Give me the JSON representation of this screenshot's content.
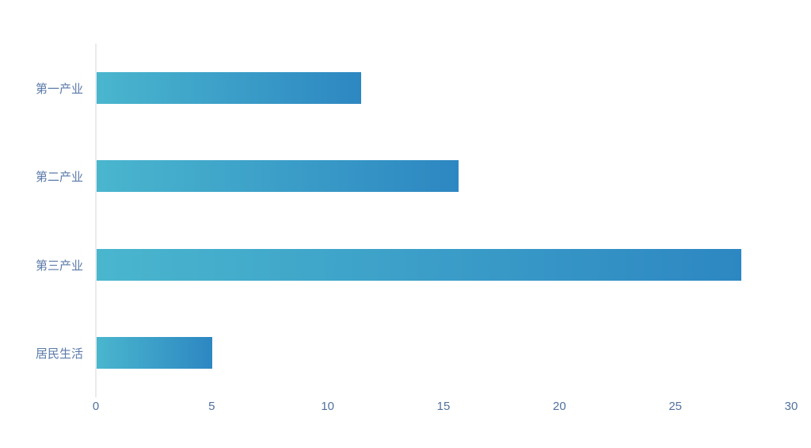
{
  "chart_data": {
    "type": "bar",
    "orientation": "horizontal",
    "title": "",
    "xlabel": "",
    "ylabel": "",
    "categories": [
      "第一产业",
      "第二产业",
      "第三产业",
      "居民生活"
    ],
    "values": [
      11.4,
      15.6,
      27.8,
      5
    ],
    "xlim": [
      0,
      30
    ],
    "x_ticks": [
      "0",
      "5",
      "10",
      "15",
      "20",
      "25",
      "30"
    ],
    "grid": false,
    "legend": "none",
    "colors": {
      "bar_gradient_start": "#4ab6ce",
      "bar_gradient_end": "#2d87c2",
      "axis_line": "#ebebeb",
      "category_label": "#5b7aa9",
      "tick_label": "#51719f",
      "background": "#ffffff"
    }
  }
}
